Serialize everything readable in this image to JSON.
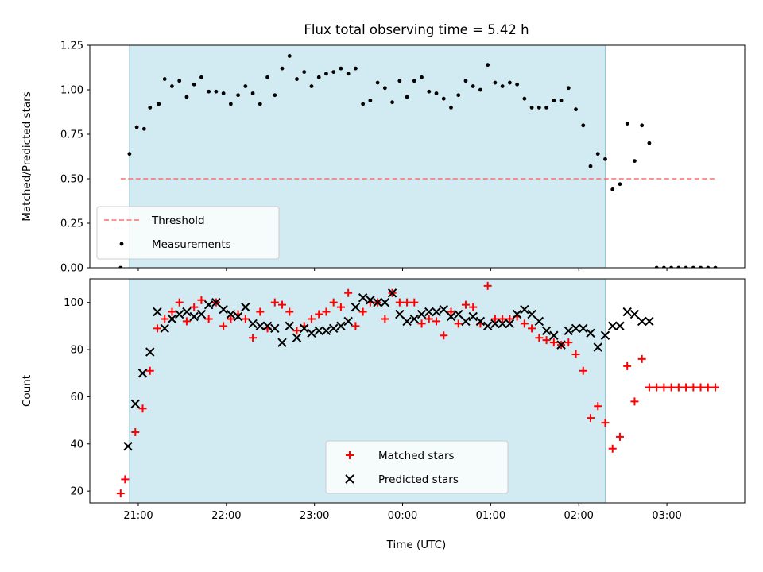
{
  "figure": {
    "title": "Flux total observing time = 5.42 h",
    "xlabel": "Time (UTC)",
    "xticks": [
      "21:00",
      "22:00",
      "23:00",
      "00:00",
      "01:00",
      "02:00",
      "03:00"
    ]
  },
  "colors": {
    "shade": "#add8e6",
    "threshold": "#ff6b6b",
    "measurements": "#000000",
    "matched": "#ff0000",
    "predicted": "#000000"
  },
  "chart_data": [
    {
      "type": "scatter",
      "ylabel": "Matched/Predicted stars",
      "xlim": [
        "20:27",
        "03:53"
      ],
      "ylim": [
        0,
        1.25
      ],
      "yticks": [
        "0.00",
        "0.25",
        "0.50",
        "0.75",
        "1.00",
        "1.25"
      ],
      "shaded_region": [
        "20:54",
        "02:18"
      ],
      "legend": {
        "position": "lower-left",
        "entries": [
          "Threshold",
          "Measurements"
        ]
      },
      "series": [
        {
          "name": "Threshold",
          "style": "dashed-line",
          "x": [
            "20:48",
            "03:33"
          ],
          "y": [
            0.5,
            0.5
          ]
        },
        {
          "name": "Measurements",
          "style": "dot",
          "x": [
            "20:48",
            "20:54",
            "20:59",
            "21:04",
            "21:08",
            "21:14",
            "21:18",
            "21:23",
            "21:28",
            "21:33",
            "21:38",
            "21:43",
            "21:48",
            "21:53",
            "21:58",
            "22:03",
            "22:08",
            "22:13",
            "22:18",
            "22:23",
            "22:28",
            "22:33",
            "22:38",
            "22:43",
            "22:48",
            "22:53",
            "22:58",
            "23:03",
            "23:08",
            "23:13",
            "23:18",
            "23:23",
            "23:28",
            "23:33",
            "23:38",
            "23:43",
            "23:48",
            "23:53",
            "23:58",
            "00:03",
            "00:08",
            "00:13",
            "00:18",
            "00:23",
            "00:28",
            "00:33",
            "00:38",
            "00:43",
            "00:48",
            "00:53",
            "00:58",
            "01:03",
            "01:08",
            "01:13",
            "01:18",
            "01:23",
            "01:28",
            "01:33",
            "01:38",
            "01:43",
            "01:48",
            "01:53",
            "01:58",
            "02:03",
            "02:08",
            "02:13",
            "02:18",
            "02:23",
            "02:28",
            "02:33",
            "02:38",
            "02:43",
            "02:48",
            "02:53",
            "02:58",
            "03:03",
            "03:08",
            "03:13",
            "03:18",
            "03:23",
            "03:28",
            "03:33"
          ],
          "y": [
            0.0,
            0.64,
            0.79,
            0.78,
            0.9,
            0.92,
            1.06,
            1.02,
            1.05,
            0.96,
            1.03,
            1.07,
            0.99,
            0.99,
            0.98,
            0.92,
            0.97,
            1.02,
            0.98,
            0.92,
            1.07,
            0.97,
            1.12,
            1.19,
            1.06,
            1.1,
            1.02,
            1.07,
            1.09,
            1.1,
            1.12,
            1.09,
            1.12,
            0.92,
            0.94,
            1.04,
            1.01,
            0.93,
            1.05,
            0.96,
            1.05,
            1.07,
            0.99,
            0.98,
            0.95,
            0.9,
            0.97,
            1.05,
            1.02,
            1.0,
            1.14,
            1.04,
            1.02,
            1.04,
            1.03,
            0.95,
            0.9,
            0.9,
            0.9,
            0.94,
            0.94,
            1.01,
            0.89,
            0.8,
            0.57,
            0.64,
            0.61,
            0.44,
            0.47,
            0.81,
            0.6,
            0.8,
            0.7,
            0.0,
            0.0,
            0.0,
            0.0,
            0.0,
            0.0,
            0.0,
            0.0,
            0.0
          ]
        }
      ]
    },
    {
      "type": "scatter",
      "ylabel": "Count",
      "xlim": [
        "20:27",
        "03:53"
      ],
      "ylim": [
        15,
        110
      ],
      "yticks": [
        "20",
        "40",
        "60",
        "80",
        "100"
      ],
      "shaded_region": [
        "20:54",
        "02:18"
      ],
      "legend": {
        "position": "lower-center",
        "entries": [
          "Matched stars",
          "Predicted stars"
        ]
      },
      "series": [
        {
          "name": "Matched stars",
          "marker": "plus",
          "x": [
            "20:48",
            "20:51",
            "20:58",
            "21:03",
            "21:08",
            "21:13",
            "21:18",
            "21:23",
            "21:28",
            "21:33",
            "21:38",
            "21:43",
            "21:48",
            "21:53",
            "21:58",
            "22:03",
            "22:08",
            "22:13",
            "22:18",
            "22:23",
            "22:28",
            "22:33",
            "22:38",
            "22:43",
            "22:48",
            "22:53",
            "22:58",
            "23:03",
            "23:08",
            "23:13",
            "23:18",
            "23:23",
            "23:28",
            "23:33",
            "23:38",
            "23:43",
            "23:48",
            "23:53",
            "23:58",
            "00:03",
            "00:08",
            "00:13",
            "00:18",
            "00:23",
            "00:28",
            "00:33",
            "00:38",
            "00:43",
            "00:48",
            "00:53",
            "00:58",
            "01:03",
            "01:08",
            "01:13",
            "01:18",
            "01:23",
            "01:28",
            "01:33",
            "01:38",
            "01:43",
            "01:48",
            "01:53",
            "01:58",
            "02:03",
            "02:08",
            "02:13",
            "02:18",
            "02:23",
            "02:28",
            "02:33",
            "02:38",
            "02:43",
            "02:48",
            "02:53",
            "02:58",
            "03:03",
            "03:08",
            "03:13",
            "03:18",
            "03:23",
            "03:28",
            "03:33"
          ],
          "y": [
            19,
            25,
            45,
            55,
            71,
            89,
            93,
            96,
            100,
            92,
            98,
            101,
            93,
            100,
            90,
            93,
            95,
            93,
            85,
            96,
            89,
            100,
            99,
            96,
            88,
            90,
            93,
            95,
            96,
            100,
            98,
            104,
            90,
            96,
            100,
            100,
            93,
            104,
            100,
            100,
            100,
            91,
            93,
            92,
            86,
            96,
            91,
            99,
            98,
            91,
            107,
            93,
            93,
            93,
            94,
            91,
            89,
            85,
            84,
            83,
            82,
            83,
            78,
            71,
            51,
            56,
            49,
            38,
            43,
            73,
            58,
            76,
            64,
            64,
            64,
            64,
            64,
            64,
            64,
            64,
            64,
            64
          ]
        },
        {
          "name": "Predicted stars",
          "marker": "x",
          "x": [
            "20:53",
            "20:58",
            "21:03",
            "21:08",
            "21:13",
            "21:18",
            "21:23",
            "21:28",
            "21:33",
            "21:38",
            "21:43",
            "21:48",
            "21:53",
            "21:58",
            "22:03",
            "22:08",
            "22:13",
            "22:18",
            "22:23",
            "22:28",
            "22:33",
            "22:38",
            "22:43",
            "22:48",
            "22:53",
            "22:58",
            "23:03",
            "23:08",
            "23:13",
            "23:18",
            "23:23",
            "23:28",
            "23:33",
            "23:38",
            "23:43",
            "23:48",
            "23:53",
            "23:58",
            "00:03",
            "00:08",
            "00:13",
            "00:18",
            "00:23",
            "00:28",
            "00:33",
            "00:38",
            "00:43",
            "00:48",
            "00:53",
            "00:58",
            "01:03",
            "01:08",
            "01:13",
            "01:18",
            "01:23",
            "01:28",
            "01:33",
            "01:38",
            "01:43",
            "01:48",
            "01:53",
            "01:58",
            "02:03",
            "02:08",
            "02:13",
            "02:18",
            "02:23",
            "02:28",
            "02:33",
            "02:38",
            "02:43",
            "02:48"
          ],
          "y": [
            39,
            57,
            70,
            79,
            96,
            89,
            93,
            95,
            96,
            94,
            95,
            99,
            100,
            97,
            95,
            94,
            98,
            91,
            90,
            90,
            89,
            83,
            90,
            85,
            89,
            87,
            88,
            88,
            89,
            90,
            92,
            98,
            102,
            101,
            100,
            100,
            104,
            95,
            92,
            93,
            95,
            96,
            96,
            97,
            94,
            95,
            92,
            94,
            92,
            90,
            91,
            91,
            91,
            95,
            97,
            95,
            92,
            88,
            86,
            82,
            88,
            89,
            89,
            87,
            81,
            86,
            90,
            90,
            96,
            95,
            92,
            92
          ]
        }
      ]
    }
  ]
}
